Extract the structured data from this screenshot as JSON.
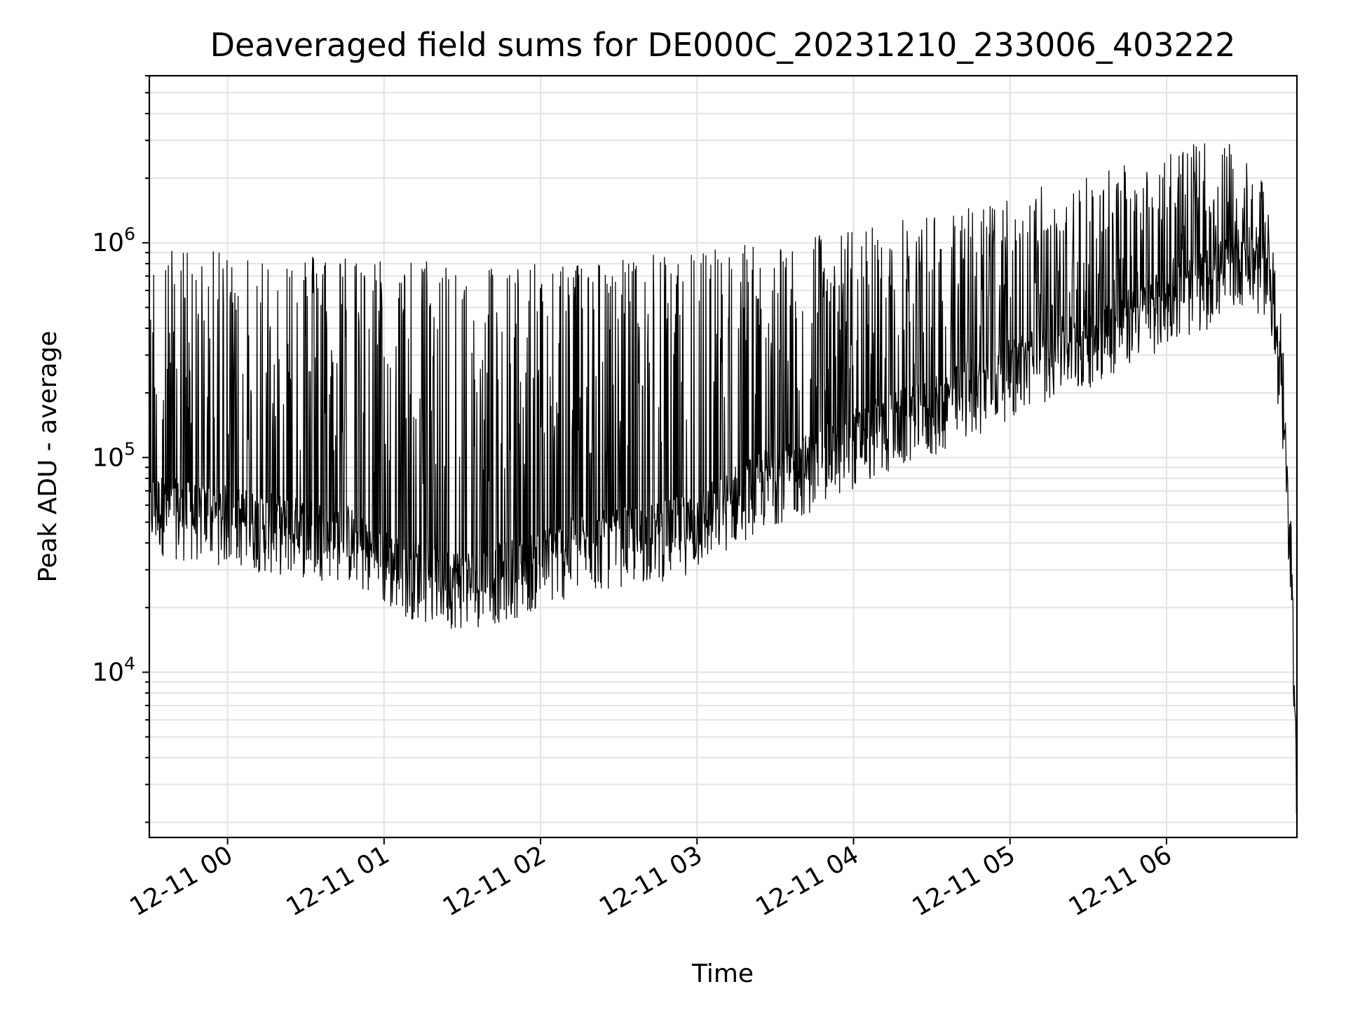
{
  "chart_data": {
    "type": "line",
    "title": "Deaveraged field sums for DE000C_20231210_233006_403222",
    "xlabel": "Time",
    "ylabel": "Peak ADU - average",
    "yscale": "log",
    "ylim": [
      1700,
      6000000
    ],
    "xlim": [
      "12-10 23:30",
      "12-11 06:50"
    ],
    "x_ticks": [
      "12-11 00",
      "12-11 01",
      "12-11 02",
      "12-11 03",
      "12-11 04",
      "12-11 05",
      "12-11 06"
    ],
    "y_ticks": [
      {
        "base": "10",
        "exp": "4",
        "value": 10000
      },
      {
        "base": "10",
        "exp": "5",
        "value": 100000
      },
      {
        "base": "10",
        "exp": "6",
        "value": 1000000
      }
    ],
    "grid": true,
    "line_color": "#000000",
    "series": [
      {
        "x": [
          "12-10 23:30",
          "12-10 23:45",
          "12-11 00:00",
          "12-11 00:15",
          "12-11 00:30",
          "12-11 00:45",
          "12-11 01:00",
          "12-11 01:15",
          "12-11 01:30",
          "12-11 01:45",
          "12-11 02:00",
          "12-11 02:15",
          "12-11 02:30",
          "12-11 02:45",
          "12-11 03:00",
          "12-11 03:15",
          "12-11 03:30",
          "12-11 03:45",
          "12-11 04:00",
          "12-11 04:15",
          "12-11 04:30",
          "12-11 04:45",
          "12-11 05:00",
          "12-11 05:15",
          "12-11 05:30",
          "12-11 05:45",
          "12-11 06:00",
          "12-11 06:15",
          "12-11 06:30",
          "12-11 06:40",
          "12-11 06:45",
          "12-11 06:48",
          "12-11 06:50"
        ],
        "baseline": [
          55000,
          50000,
          48000,
          44000,
          42000,
          40000,
          30000,
          26000,
          24000,
          26000,
          30000,
          35000,
          38000,
          40000,
          45000,
          60000,
          75000,
          85000,
          110000,
          130000,
          150000,
          190000,
          230000,
          280000,
          320000,
          400000,
          500000,
          600000,
          800000,
          600000,
          100000,
          30000,
          2000
        ],
        "peak": [
          900000,
          900000,
          850000,
          850000,
          850000,
          850000,
          800000,
          800000,
          780000,
          760000,
          760000,
          800000,
          800000,
          850000,
          900000,
          950000,
          1000000,
          1050000,
          1100000,
          1200000,
          1300000,
          1400000,
          1600000,
          1800000,
          2000000,
          2300000,
          2600000,
          2800000,
          2700000,
          1500000,
          300000,
          40000,
          2000
        ]
      }
    ]
  }
}
